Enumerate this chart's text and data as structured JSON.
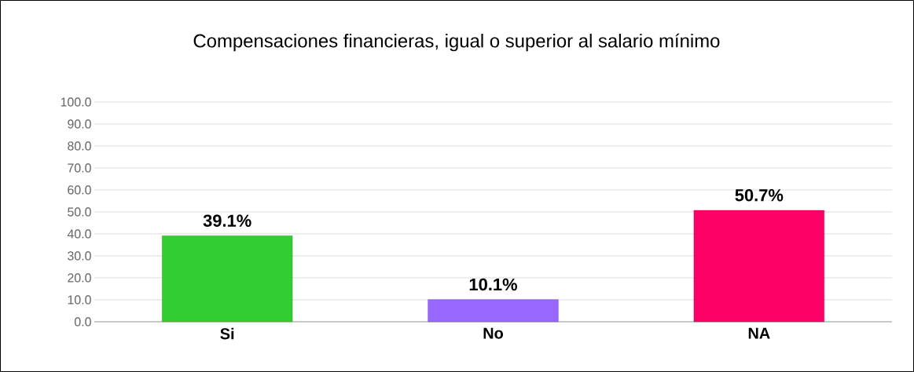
{
  "chart_data": {
    "type": "bar",
    "title": "Compensaciones financieras, igual o superior al salario mínimo",
    "categories": [
      "Si",
      "No",
      "NA"
    ],
    "values": [
      39.1,
      10.1,
      50.7
    ],
    "colors": [
      "#33cc33",
      "#9966ff",
      "#ff0066"
    ],
    "value_labels": [
      "39.1%",
      "10.1%",
      "50.7%"
    ],
    "ylim": [
      0,
      100
    ],
    "yticks": [
      {
        "value": 0,
        "label": "0.0"
      },
      {
        "value": 10,
        "label": "10.0"
      },
      {
        "value": 20,
        "label": "20.0"
      },
      {
        "value": 30,
        "label": "30.0"
      },
      {
        "value": 40,
        "label": "40.0"
      },
      {
        "value": 50,
        "label": "50.0"
      },
      {
        "value": 60,
        "label": "60.0"
      },
      {
        "value": 70,
        "label": "70.0"
      },
      {
        "value": 80,
        "label": "80.0"
      },
      {
        "value": 90,
        "label": "90.0"
      },
      {
        "value": 100,
        "label": "100.0"
      }
    ],
    "grid": "y"
  }
}
